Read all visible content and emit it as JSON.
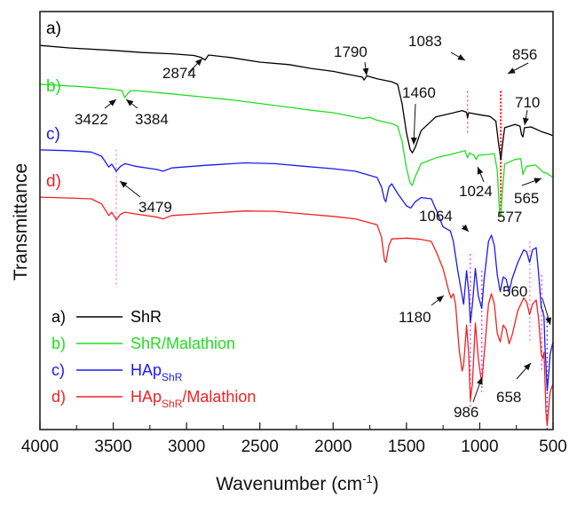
{
  "chart_data": {
    "type": "line",
    "title": "",
    "xlabel": "Wavenumber (cm",
    "xlabel_sup": "-1",
    "xlabel_close": ")",
    "ylabel": "Transmittance",
    "xlim": [
      4000,
      500
    ],
    "ylim": [
      0,
      100
    ],
    "y_units": "arbitrary (stacked, offset)",
    "x_ticks": [
      4000,
      3500,
      3000,
      2500,
      2000,
      1500,
      1000,
      500
    ],
    "x_tick_labels": [
      "4000",
      "3500",
      "3000",
      "2500",
      "2000",
      "1500",
      "1000",
      "500"
    ],
    "x_minor_ticks": [
      3750,
      3250,
      2750,
      2250,
      1750,
      1250,
      750
    ],
    "grid": false,
    "legend_position": "bottom-left",
    "series": [
      {
        "id": "a",
        "tag": "a)",
        "name": "ShR",
        "color": "#000000",
        "points": [
          [
            4000,
            91.9
          ],
          [
            3800,
            91.3
          ],
          [
            3500,
            90.7
          ],
          [
            3300,
            90.2
          ],
          [
            3100,
            89.9
          ],
          [
            2950,
            89.5
          ],
          [
            2900,
            89.0
          ],
          [
            2874,
            88.4
          ],
          [
            2850,
            89.6
          ],
          [
            2700,
            89.0
          ],
          [
            2500,
            87.9
          ],
          [
            2300,
            87.3
          ],
          [
            2150,
            86.4
          ],
          [
            2000,
            85.7
          ],
          [
            1900,
            85.0
          ],
          [
            1800,
            84.3
          ],
          [
            1790,
            83.6
          ],
          [
            1770,
            84.6
          ],
          [
            1700,
            83.9
          ],
          [
            1600,
            83.2
          ],
          [
            1560,
            82.6
          ],
          [
            1530,
            78.0
          ],
          [
            1500,
            71.0
          ],
          [
            1475,
            67.0
          ],
          [
            1460,
            66.2
          ],
          [
            1440,
            67.5
          ],
          [
            1400,
            71.5
          ],
          [
            1300,
            74.8
          ],
          [
            1200,
            75.6
          ],
          [
            1120,
            76.3
          ],
          [
            1090,
            75.9
          ],
          [
            1083,
            74.6
          ],
          [
            1075,
            75.8
          ],
          [
            1000,
            75.3
          ],
          [
            930,
            74.9
          ],
          [
            890,
            73.8
          ],
          [
            870,
            68.0
          ],
          [
            856,
            64.6
          ],
          [
            845,
            68.0
          ],
          [
            830,
            72.2
          ],
          [
            760,
            73.0
          ],
          [
            725,
            72.6
          ],
          [
            715,
            70.6
          ],
          [
            705,
            70.0
          ],
          [
            695,
            72.2
          ],
          [
            650,
            72.4
          ],
          [
            580,
            71.3
          ],
          [
            520,
            70.6
          ],
          [
            500,
            70.3
          ]
        ]
      },
      {
        "id": "b",
        "tag": "b)",
        "name": "ShR/Malathion",
        "color": "#22dd22",
        "points": [
          [
            4000,
            82.6
          ],
          [
            3700,
            82.0
          ],
          [
            3500,
            81.4
          ],
          [
            3440,
            81.1
          ],
          [
            3422,
            79.4
          ],
          [
            3400,
            80.4
          ],
          [
            3384,
            81.0
          ],
          [
            3350,
            81.1
          ],
          [
            3100,
            80.3
          ],
          [
            2900,
            79.6
          ],
          [
            2700,
            78.9
          ],
          [
            2500,
            78.0
          ],
          [
            2300,
            77.1
          ],
          [
            2150,
            76.4
          ],
          [
            2000,
            75.8
          ],
          [
            1900,
            75.1
          ],
          [
            1800,
            74.4
          ],
          [
            1750,
            74.7
          ],
          [
            1700,
            74.0
          ],
          [
            1600,
            73.2
          ],
          [
            1560,
            72.6
          ],
          [
            1530,
            69.0
          ],
          [
            1500,
            62.5
          ],
          [
            1475,
            59.0
          ],
          [
            1460,
            58.4
          ],
          [
            1440,
            60.5
          ],
          [
            1400,
            63.6
          ],
          [
            1300,
            65.0
          ],
          [
            1200,
            65.8
          ],
          [
            1100,
            66.7
          ],
          [
            1083,
            65.0
          ],
          [
            1070,
            66.2
          ],
          [
            1040,
            65.6
          ],
          [
            1024,
            64.6
          ],
          [
            1010,
            65.6
          ],
          [
            950,
            65.8
          ],
          [
            900,
            66.0
          ],
          [
            880,
            62.0
          ],
          [
            865,
            52.0
          ],
          [
            856,
            51.0
          ],
          [
            845,
            57.0
          ],
          [
            830,
            63.5
          ],
          [
            760,
            64.6
          ],
          [
            720,
            64.8
          ],
          [
            705,
            61.0
          ],
          [
            695,
            62.0
          ],
          [
            680,
            63.0
          ],
          [
            620,
            63.3
          ],
          [
            565,
            61.5
          ],
          [
            540,
            61.3
          ],
          [
            500,
            60.3
          ]
        ]
      },
      {
        "id": "c",
        "tag": "c)",
        "name": "HAp",
        "name_sub": "ShR",
        "color": "#1a1aee",
        "points": [
          [
            4000,
            66.9
          ],
          [
            3800,
            66.7
          ],
          [
            3650,
            66.4
          ],
          [
            3580,
            65.4
          ],
          [
            3530,
            62.8
          ],
          [
            3510,
            63.5
          ],
          [
            3479,
            61.8
          ],
          [
            3450,
            63.0
          ],
          [
            3420,
            63.6
          ],
          [
            3350,
            63.0
          ],
          [
            3200,
            62.2
          ],
          [
            3160,
            61.8
          ],
          [
            3100,
            62.6
          ],
          [
            2874,
            63.2
          ],
          [
            2600,
            63.8
          ],
          [
            2400,
            63.6
          ],
          [
            2200,
            63.0
          ],
          [
            2000,
            62.4
          ],
          [
            1850,
            61.8
          ],
          [
            1700,
            60.3
          ],
          [
            1670,
            58.0
          ],
          [
            1650,
            55.0
          ],
          [
            1640,
            54.5
          ],
          [
            1620,
            58.0
          ],
          [
            1600,
            58.8
          ],
          [
            1560,
            56.5
          ],
          [
            1500,
            53.5
          ],
          [
            1470,
            53.0
          ],
          [
            1440,
            54.5
          ],
          [
            1400,
            55.5
          ],
          [
            1330,
            55.2
          ],
          [
            1290,
            52.0
          ],
          [
            1250,
            48.5
          ],
          [
            1200,
            47.5
          ],
          [
            1180,
            45.0
          ],
          [
            1150,
            38.0
          ],
          [
            1120,
            32.0
          ],
          [
            1110,
            30.0
          ],
          [
            1090,
            38.0
          ],
          [
            1075,
            33.0
          ],
          [
            1064,
            25.5
          ],
          [
            1050,
            30.0
          ],
          [
            1030,
            38.5
          ],
          [
            1010,
            32.0
          ],
          [
            986,
            29.0
          ],
          [
            970,
            36.0
          ],
          [
            940,
            45.0
          ],
          [
            920,
            46.5
          ],
          [
            900,
            44.0
          ],
          [
            880,
            37.0
          ],
          [
            860,
            33.0
          ],
          [
            840,
            36.5
          ],
          [
            820,
            36.0
          ],
          [
            800,
            33.0
          ],
          [
            780,
            36.0
          ],
          [
            740,
            40.0
          ],
          [
            700,
            43.0
          ],
          [
            680,
            42.5
          ],
          [
            660,
            40.0
          ],
          [
            640,
            43.0
          ],
          [
            615,
            43.5
          ],
          [
            600,
            38.0
          ],
          [
            580,
            29.0
          ],
          [
            570,
            28.5
          ],
          [
            562,
            27.0
          ],
          [
            555,
            20.0
          ],
          [
            548,
            15.0
          ],
          [
            540,
            9.3
          ],
          [
            528,
            14.0
          ],
          [
            520,
            18.0
          ],
          [
            500,
            21.0
          ]
        ]
      },
      {
        "id": "d",
        "tag": "d)",
        "name": "HAp",
        "name_sub": "ShR",
        "name_suffix": "/Malathion",
        "color": "#ee2222",
        "points": [
          [
            4000,
            55.6
          ],
          [
            3800,
            55.4
          ],
          [
            3650,
            55.2
          ],
          [
            3580,
            54.0
          ],
          [
            3530,
            51.2
          ],
          [
            3510,
            52.0
          ],
          [
            3479,
            50.2
          ],
          [
            3450,
            51.5
          ],
          [
            3420,
            52.0
          ],
          [
            3350,
            51.6
          ],
          [
            3200,
            50.8
          ],
          [
            3160,
            50.4
          ],
          [
            3100,
            51.2
          ],
          [
            2874,
            51.7
          ],
          [
            2600,
            52.3
          ],
          [
            2400,
            52.2
          ],
          [
            2200,
            51.6
          ],
          [
            2000,
            51.0
          ],
          [
            1850,
            50.4
          ],
          [
            1700,
            49.0
          ],
          [
            1670,
            46.0
          ],
          [
            1650,
            40.5
          ],
          [
            1640,
            40.0
          ],
          [
            1620,
            44.0
          ],
          [
            1600,
            45.6
          ],
          [
            1500,
            45.8
          ],
          [
            1400,
            45.5
          ],
          [
            1330,
            45.0
          ],
          [
            1290,
            42.0
          ],
          [
            1250,
            38.5
          ],
          [
            1210,
            33.0
          ],
          [
            1195,
            31.5
          ],
          [
            1180,
            32.5
          ],
          [
            1165,
            30.0
          ],
          [
            1140,
            19.0
          ],
          [
            1120,
            14.0
          ],
          [
            1110,
            15.5
          ],
          [
            1090,
            25.0
          ],
          [
            1075,
            18.0
          ],
          [
            1064,
            7.0
          ],
          [
            1050,
            11.0
          ],
          [
            1030,
            25.5
          ],
          [
            1010,
            17.0
          ],
          [
            986,
            11.0
          ],
          [
            970,
            18.0
          ],
          [
            940,
            30.0
          ],
          [
            920,
            32.5
          ],
          [
            900,
            30.0
          ],
          [
            880,
            23.0
          ],
          [
            860,
            21.0
          ],
          [
            840,
            25.0
          ],
          [
            820,
            24.0
          ],
          [
            800,
            20.5
          ],
          [
            780,
            22.5
          ],
          [
            740,
            28.5
          ],
          [
            700,
            31.5
          ],
          [
            680,
            30.5
          ],
          [
            660,
            27.5
          ],
          [
            640,
            30.0
          ],
          [
            615,
            31.0
          ],
          [
            600,
            27.0
          ],
          [
            580,
            18.0
          ],
          [
            570,
            17.0
          ],
          [
            562,
            18.5
          ],
          [
            555,
            12.0
          ],
          [
            548,
            4.0
          ],
          [
            540,
            1.0
          ],
          [
            528,
            6.0
          ],
          [
            520,
            9.0
          ],
          [
            500,
            11.0
          ]
        ]
      }
    ],
    "curve_labels": [
      {
        "text": "a)",
        "series": "a",
        "color": "#000000"
      },
      {
        "text": "b)",
        "series": "b",
        "color": "#22dd22"
      },
      {
        "text": "c)",
        "series": "c",
        "color": "#1a1aee"
      },
      {
        "text": "d)",
        "series": "d",
        "color": "#ee2222"
      }
    ],
    "annotations": [
      {
        "text": "2874",
        "wavenumber": 2874,
        "target_series": "a"
      },
      {
        "text": "1790",
        "wavenumber": 1790,
        "target_series": "a"
      },
      {
        "text": "1083",
        "wavenumber": 1083,
        "target_series": "a"
      },
      {
        "text": "856",
        "wavenumber": 856,
        "target_series": "a"
      },
      {
        "text": "1460",
        "wavenumber": 1460,
        "target_series": "a"
      },
      {
        "text": "710",
        "wavenumber": 710,
        "target_series": "a"
      },
      {
        "text": "3422",
        "wavenumber": 3422,
        "target_series": "b"
      },
      {
        "text": "3384",
        "wavenumber": 3384,
        "target_series": "b"
      },
      {
        "text": "1024",
        "wavenumber": 1024,
        "target_series": "b"
      },
      {
        "text": "565",
        "wavenumber": 565,
        "target_series": "b"
      },
      {
        "text": "577",
        "wavenumber": 577,
        "target_series": "c"
      },
      {
        "text": "3479",
        "wavenumber": 3479,
        "target_series": "c"
      },
      {
        "text": "1064",
        "wavenumber": 1064,
        "target_series": "c"
      },
      {
        "text": "1180",
        "wavenumber": 1180,
        "target_series": "d"
      },
      {
        "text": "560",
        "wavenumber": 560,
        "target_series": "c"
      },
      {
        "text": "986",
        "wavenumber": 986,
        "target_series": "d"
      },
      {
        "text": "658",
        "wavenumber": 658,
        "target_series": "d"
      }
    ],
    "reference_lines": [
      {
        "wavenumber": 1083,
        "color": "#ff5555",
        "style": "dotted",
        "from_T": 71,
        "to_T": 81
      },
      {
        "wavenumber": 856,
        "color": "#ff2222",
        "style": "dotted-bold",
        "from_T": 51,
        "to_T": 81
      },
      {
        "wavenumber": 3479,
        "color": "#ee88ee",
        "style": "dotted",
        "from_T": 34,
        "to_T": 67
      },
      {
        "wavenumber": 1064,
        "color": "#ee44ee",
        "style": "dotted",
        "from_T": 5,
        "to_T": 42
      },
      {
        "wavenumber": 986,
        "color": "#ee44ee",
        "style": "dotted",
        "from_T": 9,
        "to_T": 38
      },
      {
        "wavenumber": 658,
        "color": "#ee88ee",
        "style": "dotted",
        "from_T": 21,
        "to_T": 45
      },
      {
        "wavenumber": 577,
        "color": "#ee44ee",
        "style": "dotted",
        "from_T": 14,
        "to_T": 37
      },
      {
        "wavenumber": 540,
        "color": "#5555ee",
        "style": "dotted",
        "from_T": 0,
        "to_T": 27
      }
    ],
    "legend": [
      {
        "tag": "a)",
        "label": "ShR",
        "color": "#000000"
      },
      {
        "tag": "b)",
        "label": "ShR/Malathion",
        "color": "#22dd22"
      },
      {
        "tag": "c)",
        "label": "HAp",
        "sub": "ShR",
        "suffix": "",
        "color": "#1a1aee"
      },
      {
        "tag": "d)",
        "label": "HAp",
        "sub": "ShR",
        "suffix": "/Malathion",
        "color": "#ee2222"
      }
    ]
  }
}
